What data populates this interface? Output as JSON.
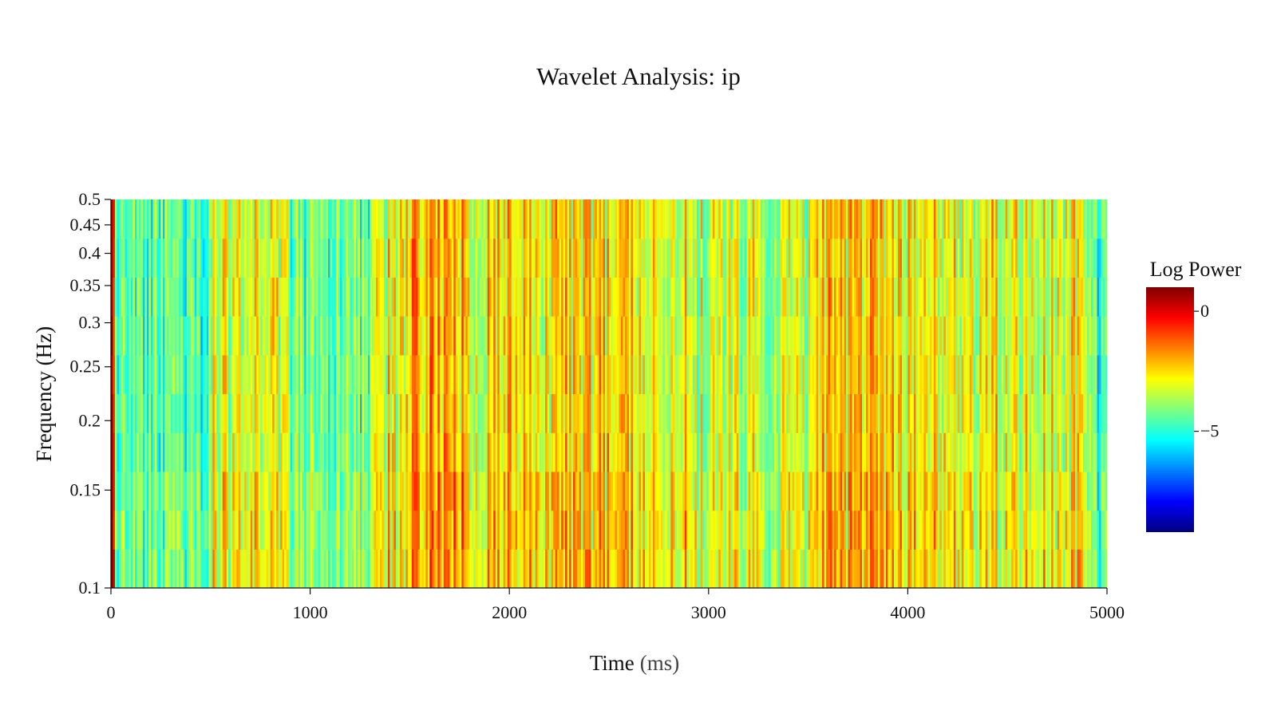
{
  "chart_data": {
    "type": "heatmap",
    "title": "Wavelet Analysis: ip",
    "xlabel": "Time",
    "xlabel_unit": "(ms)",
    "ylabel": "Frequency (Hz)",
    "xlim": [
      0,
      5000
    ],
    "ylim": [
      0.1,
      0.5
    ],
    "y_scale": "log",
    "x_ticks": [
      0,
      1000,
      2000,
      3000,
      4000,
      5000
    ],
    "x_tick_labels": [
      "0",
      "1000",
      "2000",
      "3000",
      "4000",
      "5000"
    ],
    "y_ticks": [
      0.1,
      0.15,
      0.2,
      0.25,
      0.3,
      0.35,
      0.4,
      0.45,
      0.5
    ],
    "y_tick_labels": [
      "0.1",
      "0.15",
      "0.2",
      "0.25",
      "0.3",
      "0.35",
      "0.4",
      "0.45",
      "0.5"
    ],
    "colorscale": "jet",
    "colorbar": {
      "title": "Log Power",
      "range": [
        -9.2,
        1.0
      ],
      "ticks": [
        0,
        -5
      ],
      "tick_labels": [
        "0",
        "−5"
      ],
      "colors": [
        "#00007f",
        "#0000ff",
        "#007fff",
        "#00ffff",
        "#7fff7f",
        "#ffff00",
        "#ff7f00",
        "#ff0000",
        "#7f0000"
      ]
    },
    "legend": "colorbar-right",
    "grid": false,
    "time_segments": [
      {
        "x_start": 0,
        "x_end": 20,
        "mean_log_power": -0.5
      },
      {
        "x_start": 20,
        "x_end": 500,
        "mean_log_power": -4.6
      },
      {
        "x_start": 500,
        "x_end": 900,
        "mean_log_power": -3.4
      },
      {
        "x_start": 900,
        "x_end": 1300,
        "mean_log_power": -4.3
      },
      {
        "x_start": 1300,
        "x_end": 1500,
        "mean_log_power": -3.0
      },
      {
        "x_start": 1500,
        "x_end": 1800,
        "mean_log_power": -2.2
      },
      {
        "x_start": 1800,
        "x_end": 2900,
        "mean_log_power": -2.7
      },
      {
        "x_start": 2900,
        "x_end": 3500,
        "mean_log_power": -3.4
      },
      {
        "x_start": 3500,
        "x_end": 4000,
        "mean_log_power": -2.7
      },
      {
        "x_start": 4000,
        "x_end": 4900,
        "mean_log_power": -3.0
      },
      {
        "x_start": 4900,
        "x_end": 5000,
        "mean_log_power": -4.6
      }
    ]
  }
}
